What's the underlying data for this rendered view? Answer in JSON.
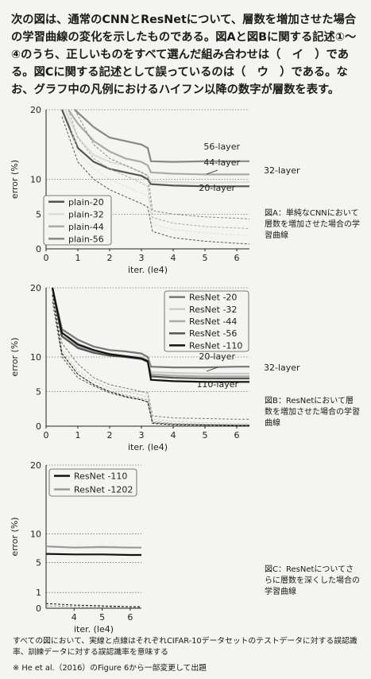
{
  "intro_text": "次の図は、通常のCNNとResNetについて、層数を増加させた場合の学習曲線の変化を示したものである。図Aと図Bに関する記述①〜④のうち、正しいものをすべて選んだ組み合わせは（　イ　）である。図Cに関する記述として誤っているのは（　ウ　）である。なお、グラフ中の凡例におけるハイフン以降の数字が層数を表す。",
  "captions": {
    "A": "図A：単純なCNNにおいて層数を増加させた場合の学習曲線",
    "B": "図B：ResNetにおいて層数を増加させた場合の学習曲線",
    "C": "図C：ResNetについてさらに層数を深くした場合の学習曲線"
  },
  "footnote": "すべての図において、実線と点線はそれぞれCIFAR-10データセットのテストデータに対する誤認識率、訓練データに対する誤認識率を意味する",
  "source": "※ He et al.（2016）のFigure 6から一部変更して出題",
  "colors": {
    "grid": "#333333",
    "axis": "#222222"
  },
  "chart_data": [
    {
      "id": "A",
      "type": "line",
      "xlabel": "iter. (le4)",
      "ylabel": "error (%)",
      "xlim": [
        0,
        6.4
      ],
      "ylim": [
        0,
        20
      ],
      "xticks": [
        0,
        1,
        2,
        3,
        4,
        5,
        6
      ],
      "yticks": [
        0,
        5,
        10,
        20
      ],
      "legend": "lower-left",
      "series_labels": [
        "plain-20",
        "plain-32",
        "plain-44",
        "plain-56"
      ],
      "annotations": [
        "56-layer",
        "44-layer",
        "32-layer",
        "20-layer"
      ],
      "series": [
        {
          "name": "plain-20",
          "color": "#555555",
          "test": [
            [
              0.5,
              20
            ],
            [
              1,
              14.5
            ],
            [
              1.5,
              12.5
            ],
            [
              2,
              11.5
            ],
            [
              2.5,
              11
            ],
            [
              3,
              10.5
            ],
            [
              3.2,
              10
            ],
            [
              3.3,
              9.3
            ],
            [
              4,
              9.1
            ],
            [
              5,
              9
            ],
            [
              6,
              9
            ],
            [
              6.4,
              9
            ]
          ],
          "train": [
            [
              0.5,
              19
            ],
            [
              1,
              12.5
            ],
            [
              1.5,
              10
            ],
            [
              2,
              8.5
            ],
            [
              2.5,
              7.5
            ],
            [
              3,
              6.5
            ],
            [
              3.2,
              6
            ],
            [
              3.35,
              2.5
            ],
            [
              4,
              1.6
            ],
            [
              5,
              1.1
            ],
            [
              6,
              0.8
            ],
            [
              6.4,
              0.7
            ]
          ]
        },
        {
          "name": "plain-32",
          "color": "#dddddd",
          "test": [
            [
              0.6,
              20
            ],
            [
              1,
              16
            ],
            [
              1.5,
              13.5
            ],
            [
              2,
              12.5
            ],
            [
              2.5,
              12
            ],
            [
              3,
              11
            ],
            [
              3.2,
              10.6
            ],
            [
              3.3,
              9.7
            ],
            [
              4,
              9.6
            ],
            [
              5,
              9.5
            ],
            [
              6,
              9.6
            ],
            [
              6.4,
              9.6
            ]
          ],
          "train": [
            [
              0.6,
              20
            ],
            [
              1,
              14
            ],
            [
              1.5,
              11.5
            ],
            [
              2,
              10
            ],
            [
              2.5,
              9
            ],
            [
              3,
              8
            ],
            [
              3.2,
              7.6
            ],
            [
              3.35,
              3.5
            ],
            [
              4,
              2.8
            ],
            [
              5,
              2.3
            ],
            [
              6,
              2
            ],
            [
              6.4,
              1.9
            ]
          ]
        },
        {
          "name": "plain-44",
          "color": "#aaaaaa",
          "test": [
            [
              0.7,
              20
            ],
            [
              1,
              18
            ],
            [
              1.5,
              15.5
            ],
            [
              2,
              14
            ],
            [
              2.5,
              13
            ],
            [
              3,
              12.5
            ],
            [
              3.2,
              12
            ],
            [
              3.3,
              11
            ],
            [
              4,
              10.8
            ],
            [
              5,
              10.7
            ],
            [
              6,
              10.7
            ],
            [
              6.4,
              10.7
            ]
          ],
          "train": [
            [
              0.7,
              20
            ],
            [
              1,
              16
            ],
            [
              1.5,
              13
            ],
            [
              2,
              11.5
            ],
            [
              2.5,
              10.5
            ],
            [
              3,
              9.5
            ],
            [
              3.2,
              9
            ],
            [
              3.35,
              4.5
            ],
            [
              4,
              3.7
            ],
            [
              5,
              3.2
            ],
            [
              6,
              3
            ],
            [
              6.4,
              2.9
            ]
          ]
        },
        {
          "name": "plain-56",
          "color": "#888888",
          "test": [
            [
              0.9,
              20
            ],
            [
              1.5,
              17.5
            ],
            [
              2,
              16
            ],
            [
              2.5,
              15.5
            ],
            [
              3,
              15
            ],
            [
              3.2,
              14.5
            ],
            [
              3.3,
              12.6
            ],
            [
              4,
              12.5
            ],
            [
              5,
              12.6
            ],
            [
              6,
              12.6
            ],
            [
              6.4,
              12.6
            ]
          ],
          "train": [
            [
              0.9,
              20
            ],
            [
              1.5,
              15
            ],
            [
              2,
              13
            ],
            [
              2.5,
              12
            ],
            [
              3,
              11
            ],
            [
              3.2,
              10.5
            ],
            [
              3.35,
              5.5
            ],
            [
              4,
              5
            ],
            [
              5,
              4.6
            ],
            [
              6,
              4.4
            ],
            [
              6.4,
              4.3
            ]
          ]
        }
      ]
    },
    {
      "id": "B",
      "type": "line",
      "xlabel": "iter. (le4)",
      "ylabel": "error (%)",
      "xlim": [
        0,
        6.4
      ],
      "ylim": [
        0,
        20
      ],
      "xticks": [
        0,
        1,
        2,
        3,
        4,
        5,
        6
      ],
      "yticks": [
        0,
        5,
        10,
        20
      ],
      "legend": "top-right",
      "series_labels": [
        "ResNet -20",
        "ResNet -32",
        "ResNet -44",
        "ResNet -56",
        "ResNet -110"
      ],
      "annotations": [
        "20-layer",
        "32-layer",
        "110-layer"
      ],
      "series": [
        {
          "name": "ResNet -20",
          "color": "#777777",
          "test": [
            [
              0.2,
              20
            ],
            [
              0.5,
              14
            ],
            [
              1,
              12.5
            ],
            [
              1.5,
              11.5
            ],
            [
              2,
              11
            ],
            [
              2.5,
              10.8
            ],
            [
              3,
              10.5
            ],
            [
              3.2,
              10
            ],
            [
              3.3,
              8.6
            ],
            [
              4,
              8.5
            ],
            [
              5,
              8.5
            ],
            [
              6,
              8.6
            ],
            [
              6.4,
              8.6
            ]
          ],
          "train": [
            [
              0.2,
              19
            ],
            [
              0.5,
              12
            ],
            [
              1,
              9
            ],
            [
              1.5,
              7
            ],
            [
              2,
              6
            ],
            [
              2.5,
              5.5
            ],
            [
              3,
              5
            ],
            [
              3.2,
              4.8
            ],
            [
              3.35,
              1.5
            ],
            [
              4,
              1.2
            ],
            [
              5,
              1.1
            ],
            [
              6,
              1
            ],
            [
              6.4,
              1
            ]
          ]
        },
        {
          "name": "ResNet -32",
          "color": "#cccccc",
          "test": [
            [
              0.2,
              20
            ],
            [
              0.5,
              13.5
            ],
            [
              1,
              12
            ],
            [
              1.5,
              11
            ],
            [
              2,
              10.5
            ],
            [
              2.5,
              10.2
            ],
            [
              3,
              10
            ],
            [
              3.2,
              9.6
            ],
            [
              3.3,
              7.8
            ],
            [
              4,
              7.7
            ],
            [
              5,
              7.6
            ],
            [
              6,
              7.6
            ],
            [
              6.4,
              7.6
            ]
          ],
          "train": [
            [
              0.2,
              18
            ],
            [
              0.5,
              11
            ],
            [
              1,
              8
            ],
            [
              1.5,
              6.5
            ],
            [
              2,
              5.5
            ],
            [
              2.5,
              5
            ],
            [
              3,
              4.5
            ],
            [
              3.2,
              4.2
            ],
            [
              3.35,
              1
            ],
            [
              4,
              0.7
            ],
            [
              5,
              0.5
            ],
            [
              6,
              0.4
            ],
            [
              6.4,
              0.4
            ]
          ]
        },
        {
          "name": "ResNet -44",
          "color": "#aaaaaa",
          "test": [
            [
              0.2,
              20
            ],
            [
              0.5,
              13
            ],
            [
              1,
              11.5
            ],
            [
              1.5,
              10.8
            ],
            [
              2,
              10.3
            ],
            [
              2.5,
              10
            ],
            [
              3,
              9.8
            ],
            [
              3.2,
              9.4
            ],
            [
              3.3,
              7.5
            ],
            [
              4,
              7.3
            ],
            [
              5,
              7.2
            ],
            [
              6,
              7.2
            ],
            [
              6.4,
              7.2
            ]
          ],
          "train": [
            [
              0.2,
              18
            ],
            [
              0.5,
              10.5
            ],
            [
              1,
              7.5
            ],
            [
              1.5,
              6
            ],
            [
              2,
              5
            ],
            [
              2.5,
              4.5
            ],
            [
              3,
              4
            ],
            [
              3.2,
              3.8
            ],
            [
              3.35,
              0.7
            ],
            [
              4,
              0.4
            ],
            [
              5,
              0.3
            ],
            [
              6,
              0.2
            ],
            [
              6.4,
              0.2
            ]
          ]
        },
        {
          "name": "ResNet -56",
          "color": "#555555",
          "test": [
            [
              0.2,
              20
            ],
            [
              0.5,
              13
            ],
            [
              1,
              11.3
            ],
            [
              1.5,
              10.6
            ],
            [
              2,
              10.2
            ],
            [
              2.5,
              10
            ],
            [
              3,
              9.7
            ],
            [
              3.2,
              9.3
            ],
            [
              3.3,
              7.2
            ],
            [
              4,
              7
            ],
            [
              5,
              6.9
            ],
            [
              6,
              6.9
            ],
            [
              6.4,
              6.9
            ]
          ],
          "train": [
            [
              0.2,
              18
            ],
            [
              0.5,
              10
            ],
            [
              1,
              7
            ],
            [
              1.5,
              5.8
            ],
            [
              2,
              4.8
            ],
            [
              2.5,
              4.2
            ],
            [
              3,
              3.8
            ],
            [
              3.2,
              3.5
            ],
            [
              3.35,
              0.5
            ],
            [
              4,
              0.3
            ],
            [
              5,
              0.2
            ],
            [
              6,
              0.15
            ],
            [
              6.4,
              0.15
            ]
          ]
        },
        {
          "name": "ResNet -110",
          "color": "#111111",
          "test": [
            [
              0.2,
              20
            ],
            [
              0.5,
              13.5
            ],
            [
              1,
              11.8
            ],
            [
              1.5,
              11
            ],
            [
              2,
              10.4
            ],
            [
              2.5,
              10.1
            ],
            [
              3,
              9.8
            ],
            [
              3.2,
              9.4
            ],
            [
              3.3,
              6.7
            ],
            [
              4,
              6.5
            ],
            [
              5,
              6.4
            ],
            [
              6,
              6.4
            ],
            [
              6.4,
              6.4
            ]
          ],
          "train": [
            [
              0.2,
              19
            ],
            [
              0.5,
              10.5
            ],
            [
              1,
              7.5
            ],
            [
              1.5,
              6
            ],
            [
              2,
              5
            ],
            [
              2.5,
              4.3
            ],
            [
              3,
              3.8
            ],
            [
              3.2,
              3.5
            ],
            [
              3.35,
              0.4
            ],
            [
              4,
              0.2
            ],
            [
              5,
              0.15
            ],
            [
              6,
              0.1
            ],
            [
              6.4,
              0.1
            ]
          ]
        }
      ]
    },
    {
      "id": "C",
      "type": "line",
      "xlabel": "iter. (le4)",
      "ylabel": "error (%)",
      "xlim": [
        3,
        6.4
      ],
      "ylim": [
        0,
        20
      ],
      "xticks": [
        4,
        5,
        6
      ],
      "yticks": [
        0,
        1,
        5,
        10,
        20
      ],
      "legend": "top-left",
      "series_labels": [
        "ResNet -110",
        "ResNet -1202"
      ],
      "series": [
        {
          "name": "ResNet -110",
          "color": "#111111",
          "test": [
            [
              3,
              6.5
            ],
            [
              4,
              6.4
            ],
            [
              5,
              6.4
            ],
            [
              6,
              6.3
            ],
            [
              6.4,
              6.3
            ]
          ],
          "train": [
            [
              3,
              0.3
            ],
            [
              4,
              0.2
            ],
            [
              5,
              0.15
            ],
            [
              6,
              0.1
            ],
            [
              6.4,
              0.1
            ]
          ]
        },
        {
          "name": "ResNet -1202",
          "color": "#999999",
          "test": [
            [
              3,
              7.8
            ],
            [
              4,
              7.6
            ],
            [
              5,
              7.7
            ],
            [
              6,
              7.6
            ],
            [
              6.4,
              7.6
            ]
          ],
          "train": [
            [
              3,
              0.15
            ],
            [
              4,
              0.1
            ],
            [
              5,
              0.08
            ],
            [
              6,
              0.06
            ],
            [
              6.4,
              0.05
            ]
          ]
        }
      ]
    }
  ]
}
